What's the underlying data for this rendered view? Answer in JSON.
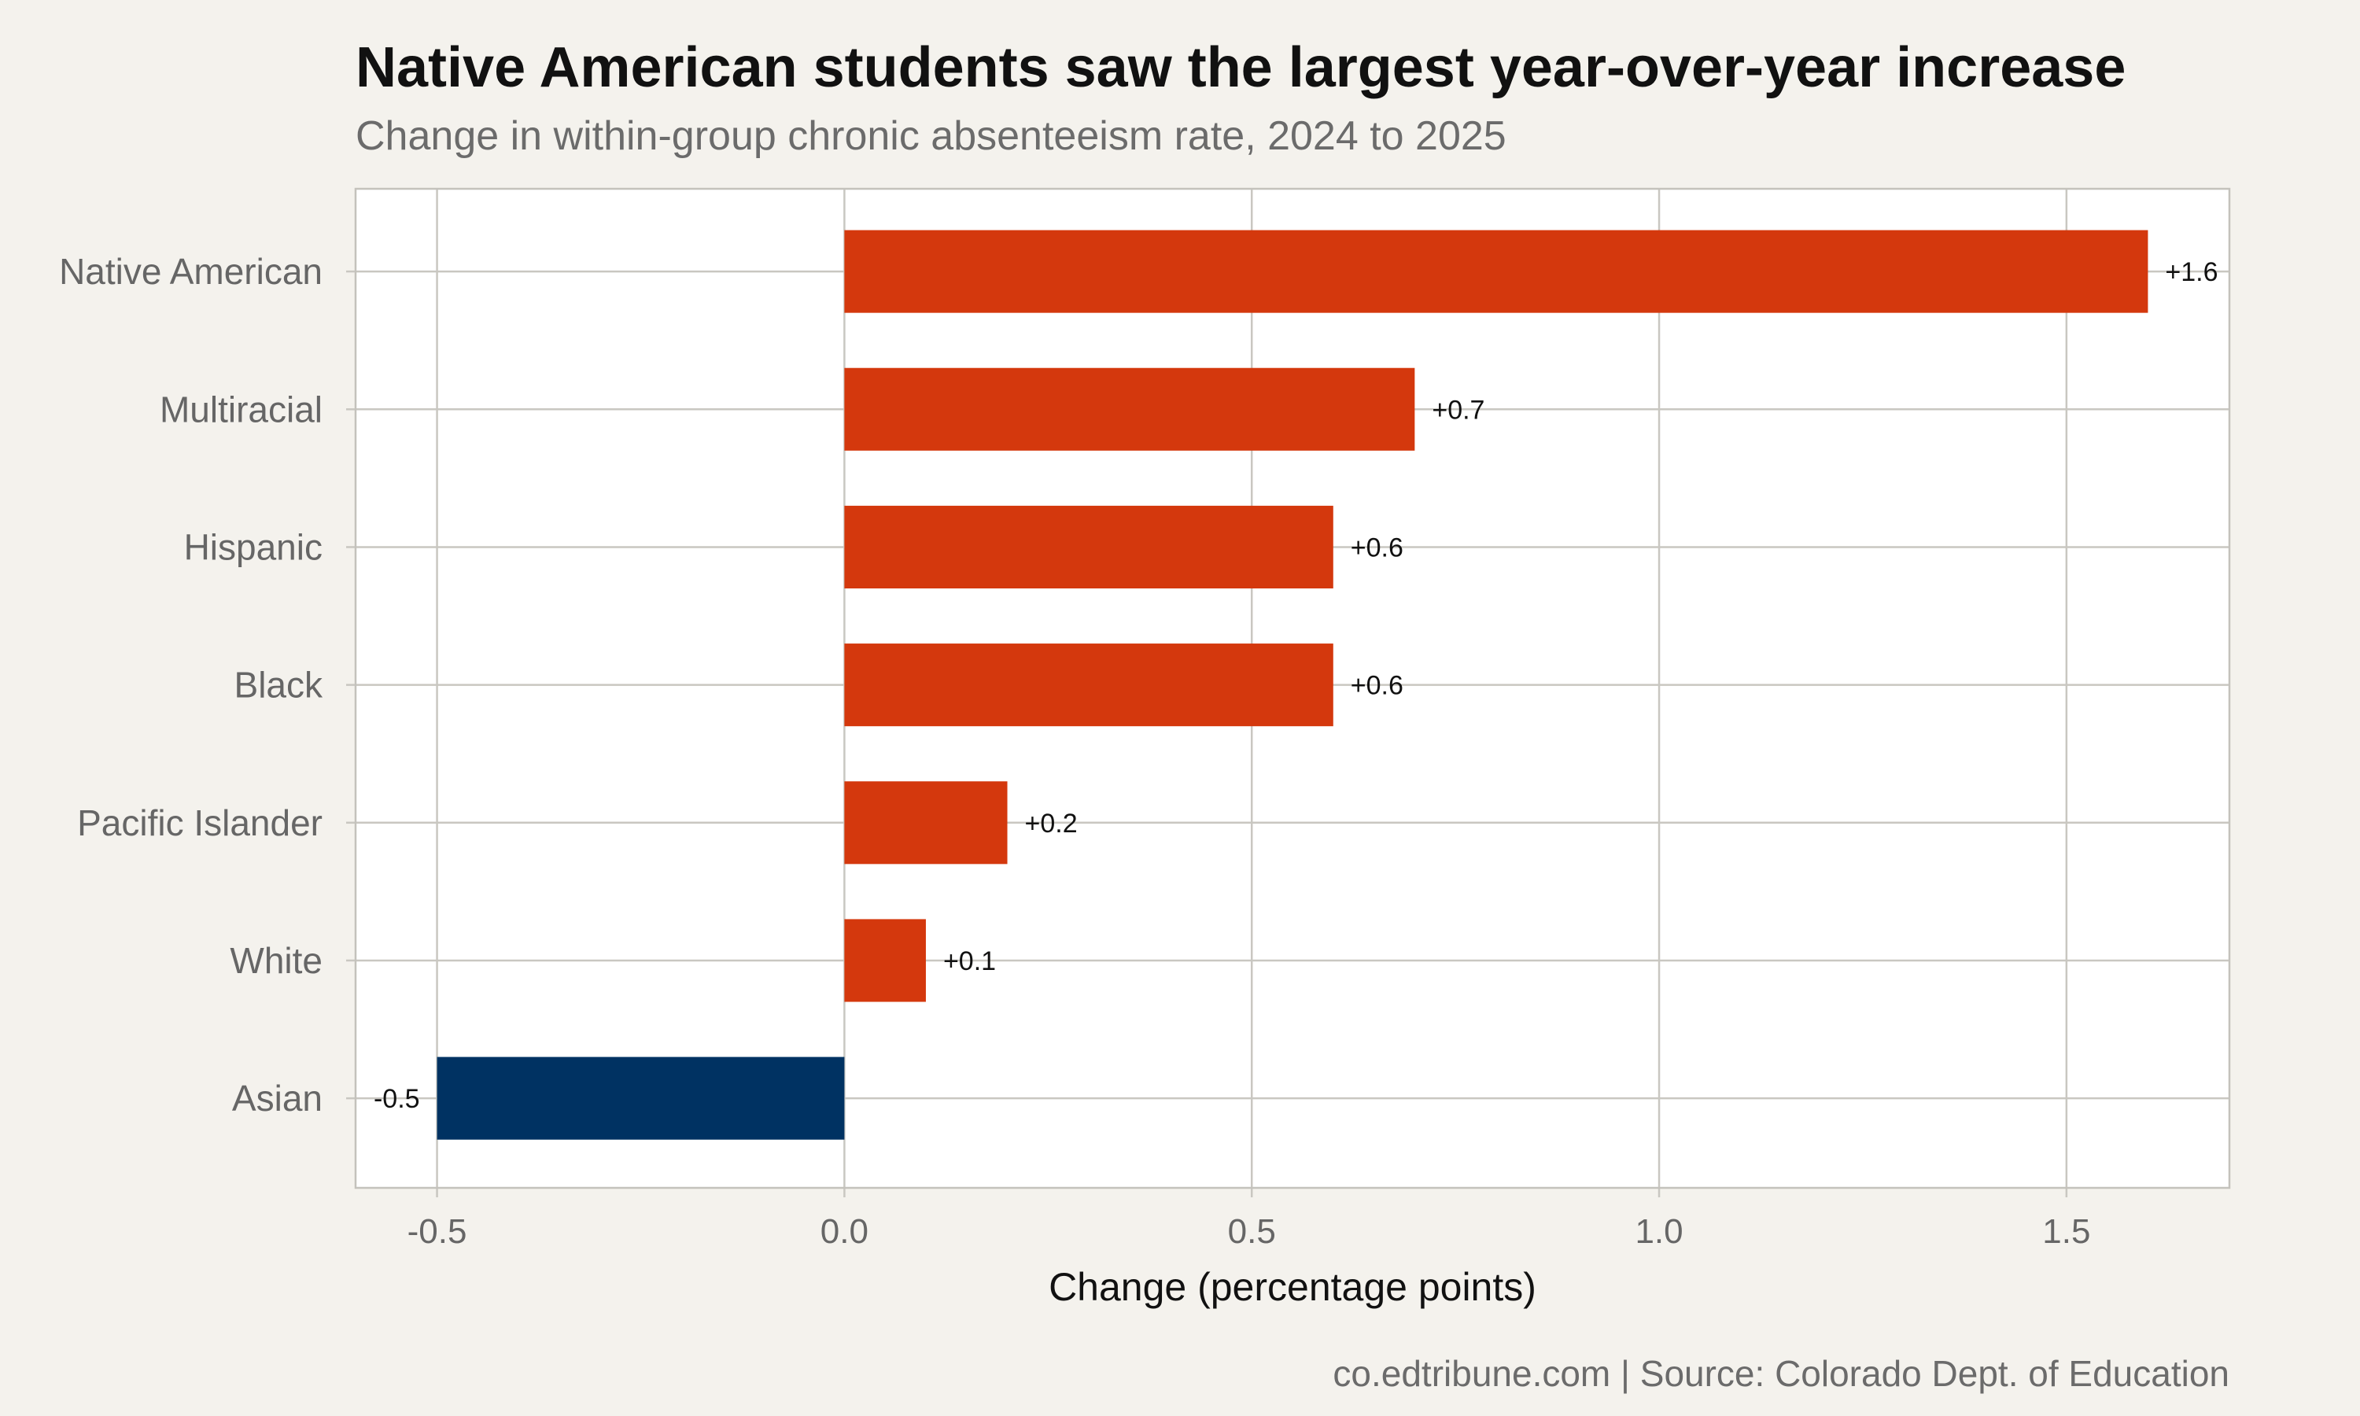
{
  "chart_data": {
    "type": "bar",
    "orientation": "horizontal",
    "title": "Native American students saw the largest year-over-year increase",
    "subtitle": "Change in within-group chronic absenteeism rate, 2024 to 2025",
    "xlabel": "Change (percentage points)",
    "ylabel": "",
    "caption": "co.edtribune.com | Source: Colorado Dept. of Education",
    "categories": [
      "Native American",
      "Multiracial",
      "Hispanic",
      "Black",
      "Pacific Islander",
      "White",
      "Asian"
    ],
    "values": [
      1.6,
      0.7,
      0.6,
      0.6,
      0.2,
      0.1,
      -0.5
    ],
    "data_labels": [
      "+1.6",
      "+0.7",
      "+0.6",
      "+0.6",
      "+0.2",
      "+0.1",
      "-0.5"
    ],
    "xlim": [
      -0.6,
      1.7
    ],
    "xticks": [
      -0.5,
      0.0,
      0.5,
      1.0,
      1.5
    ],
    "xtick_labels": [
      "-0.5",
      "0.0",
      "0.5",
      "1.0",
      "1.5"
    ],
    "grid": true,
    "colors": {
      "positive": "#d4380d",
      "negative": "#003262",
      "background": "#f4f2ed",
      "panel": "#ffffff"
    }
  }
}
